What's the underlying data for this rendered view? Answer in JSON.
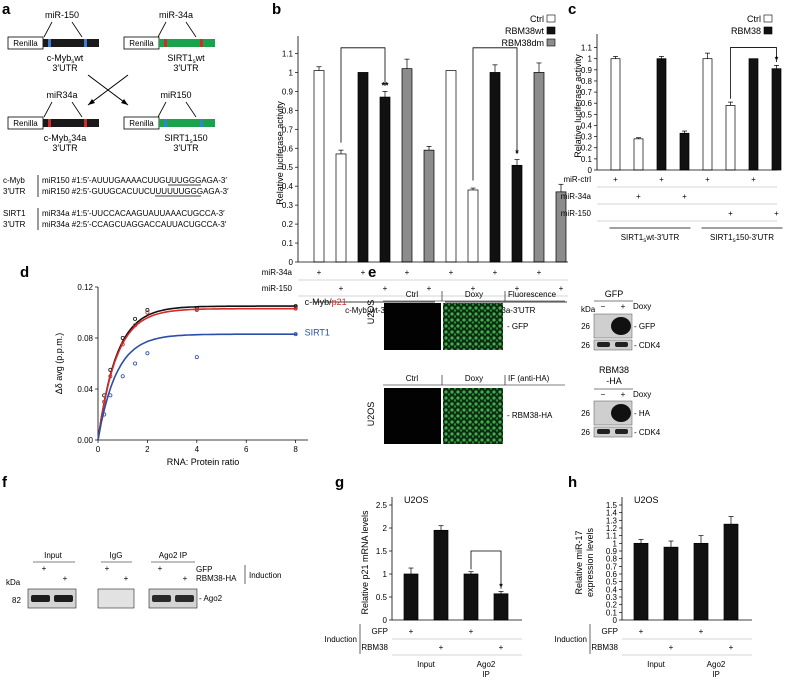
{
  "panel_labels": [
    "a",
    "b",
    "c",
    "d",
    "e",
    "f",
    "g",
    "h"
  ],
  "panel_a": {
    "constructs": [
      {
        "mirna": "miR-150",
        "renilla": "Renilla",
        "name1": "c-Myb",
        "sub": "s",
        "name2": "wt",
        "utr": "3′UTR",
        "color": "#1a1a1a",
        "site_color": "#3a7fd5"
      },
      {
        "mirna": "miR-34a",
        "renilla": "Renilla",
        "name1": "SIRT1",
        "sub": "s",
        "name2": "wt",
        "utr": "3′UTR",
        "color": "#1aa34a",
        "site_color": "#d42a2a"
      },
      {
        "mirna": "miR34a",
        "renilla": "Renilla",
        "name1": "c-Myb",
        "sub": "s",
        "name2": "34a",
        "utr": "3′UTR",
        "color": "#1a1a1a",
        "site_color": "#d42a2a"
      },
      {
        "mirna": "miR150",
        "renilla": "Renilla",
        "name1": "SIRT1",
        "sub": "s",
        "name2": "150",
        "utr": "3′UTR",
        "color": "#1aa34a",
        "site_color": "#3a7fd5"
      }
    ],
    "sequences": [
      {
        "gene": "c-Myb",
        "utr": "3′UTR",
        "lines": [
          "miR150 #1:5′-AUUUGAAAACUUGUUUGGGAGA-3′",
          "miR150 #2:5′-GUUGCACUUCUUUUUUGGGAGA-3′"
        ]
      },
      {
        "gene": "SIRT1",
        "utr": "3′UTR",
        "lines": [
          "miR34a #1:5′-UUCCACAAGUAUUAAACUGCCA-3′",
          "miR34a #2:5′-CCAGCUAGGACCAUUACUGCCA-3′"
        ]
      }
    ]
  },
  "panel_b": {
    "ylabel": "Relative luciferase activity",
    "yticks": [
      "0",
      "0.1",
      "0.2",
      "0.3",
      "0.4",
      "0.5",
      "0.6",
      "0.7",
      "0.8",
      "0.9",
      "1",
      "1.1"
    ],
    "ylim": [
      0,
      1.15
    ],
    "legend": [
      "Ctrl",
      "RBM38wt",
      "RBM38dm"
    ],
    "colors": {
      "Ctrl": "#ffffff",
      "RBM38wt": "#111111",
      "RBM38dm": "#8c8c8c"
    },
    "bars": [
      {
        "group": "Ctrl",
        "value": 1.01,
        "err": 0.02
      },
      {
        "group": "Ctrl",
        "value": 0.57,
        "err": 0.02
      },
      {
        "group": "RBM38wt",
        "value": 1.0,
        "err": 0.0
      },
      {
        "group": "RBM38wt",
        "value": 0.87,
        "err": 0.03
      },
      {
        "group": "RBM38dm",
        "value": 1.02,
        "err": 0.05
      },
      {
        "group": "RBM38dm",
        "value": 0.59,
        "err": 0.02
      },
      {
        "group": "Ctrl",
        "value": 1.01,
        "err": 0.0
      },
      {
        "group": "Ctrl",
        "value": 0.38,
        "err": 0.01
      },
      {
        "group": "RBM38wt",
        "value": 1.0,
        "err": 0.04
      },
      {
        "group": "RBM38wt",
        "value": 0.51,
        "err": 0.03
      },
      {
        "group": "RBM38dm",
        "value": 1.0,
        "err": 0.05
      },
      {
        "group": "RBM38dm",
        "value": 0.37,
        "err": 0.04
      }
    ],
    "row_labels": [
      "miR-34a",
      "miR-150"
    ],
    "row_marks": [
      [
        "+",
        "",
        "+",
        "",
        "+",
        "",
        "+",
        "",
        "+",
        "",
        "+",
        ""
      ],
      [
        "",
        "+",
        "",
        "+",
        "",
        "+",
        "",
        "+",
        "",
        "+",
        "",
        "+"
      ]
    ],
    "groups": [
      "c-Myb",
      "s",
      "wt-3′UTR",
      "c-Myb",
      "s",
      "3a-3′UTR"
    ],
    "sig": [
      "**",
      "*"
    ]
  },
  "panel_c": {
    "ylabel": "Relative luciferase activity",
    "yticks": [
      "0",
      "0.1",
      "0.2",
      "0.3",
      "0.4",
      "0.5",
      "0.6",
      "0.7",
      "0.8",
      "0.9",
      "1",
      "1.1"
    ],
    "ylim": [
      0,
      1.15
    ],
    "legend": [
      "Ctrl",
      "RBM38"
    ],
    "bars": [
      {
        "group": "Ctrl",
        "value": 1.0,
        "err": 0.02
      },
      {
        "group": "Ctrl",
        "value": 0.28,
        "err": 0.01
      },
      {
        "group": "RBM38",
        "value": 1.0,
        "err": 0.02
      },
      {
        "group": "RBM38",
        "value": 0.33,
        "err": 0.02
      },
      {
        "group": "Ctrl",
        "value": 1.0,
        "err": 0.05
      },
      {
        "group": "Ctrl",
        "value": 0.58,
        "err": 0.03
      },
      {
        "group": "RBM38",
        "value": 1.0,
        "err": 0.0
      },
      {
        "group": "RBM38",
        "value": 0.91,
        "err": 0.03
      }
    ],
    "row_labels": [
      "miR-ctrl",
      "miR-34a",
      "miR-150"
    ],
    "row_marks": [
      [
        "+",
        "",
        "+",
        "",
        "+",
        "",
        "+",
        ""
      ],
      [
        "",
        "+",
        "",
        "+",
        "",
        "",
        "",
        ""
      ],
      [
        "",
        "",
        "",
        "",
        "",
        "+",
        "",
        "+"
      ]
    ],
    "groups": [
      "SIRT1",
      "s",
      "wt-3′UTR",
      "SIRT1",
      "s",
      "150-3′UTR"
    ],
    "sig": [
      "*"
    ]
  },
  "panel_d": {
    "ylabel": "Δδ avg (p.p.m.)",
    "xlabel": "RNA: Protein ratio",
    "yticks": [
      "0.00",
      "0.04",
      "0.08",
      "0.12"
    ],
    "xticks": [
      "0",
      "2",
      "4",
      "6",
      "8"
    ],
    "xlim": [
      0,
      8.5
    ],
    "ylim": [
      0,
      0.12
    ],
    "series": [
      {
        "name": "c-Myb",
        "color": "#111111",
        "points": [
          [
            0.25,
            0.035
          ],
          [
            0.5,
            0.055
          ],
          [
            1,
            0.08
          ],
          [
            1.5,
            0.095
          ],
          [
            2,
            0.102
          ],
          [
            4,
            0.103
          ],
          [
            8,
            0.105
          ]
        ]
      },
      {
        "name": "p21",
        "color": "#d42a2a",
        "points": [
          [
            0.25,
            0.03
          ],
          [
            0.5,
            0.05
          ],
          [
            1,
            0.075
          ],
          [
            1.5,
            0.09
          ],
          [
            2,
            0.1
          ],
          [
            4,
            0.102
          ],
          [
            8,
            0.103
          ]
        ]
      },
      {
        "name": "SIRT1",
        "color": "#2a4fa8",
        "points": [
          [
            0.25,
            0.02
          ],
          [
            0.5,
            0.035
          ],
          [
            1,
            0.05
          ],
          [
            1.5,
            0.06
          ],
          [
            2,
            0.068
          ],
          [
            4,
            0.065
          ],
          [
            8,
            0.083
          ]
        ]
      }
    ],
    "label_sep": "/"
  },
  "panel_e": {
    "cell": "U2OS",
    "top": {
      "cols": [
        "Ctrl",
        "Doxy"
      ],
      "mode": "Fluorescence",
      "target": "- GFP",
      "blot_title": "GFP",
      "kda": "kDa",
      "minus": "−",
      "plus": "+",
      "doxy": "Doxy",
      "bands": [
        {
          "mw": "26",
          "label": "- GFP"
        },
        {
          "mw": "26",
          "label": "- CDK4"
        }
      ]
    },
    "bottom": {
      "cols": [
        "Ctrl",
        "Doxy"
      ],
      "mode": "IF (anti-HA)",
      "target": "- RBM38-HA",
      "blot_title_1": "RBM38",
      "blot_title_2": "-HA",
      "minus": "−",
      "plus": "+",
      "doxy": "Doxy",
      "bands": [
        {
          "mw": "26",
          "label": "- HA"
        },
        {
          "mw": "26",
          "label": "- CDK4"
        }
      ]
    }
  },
  "panel_f": {
    "lanes": [
      "Input",
      "IgG",
      "Ago2 IP"
    ],
    "rows": [
      "GFP",
      "RBM38-HA"
    ],
    "marks": [
      [
        "+",
        "",
        "+",
        "",
        "+",
        ""
      ],
      [
        "",
        "+",
        "",
        "+",
        "",
        "+"
      ]
    ],
    "induction": "Induction",
    "kda": "kDa",
    "mw": "82",
    "band": "- Ago2"
  },
  "panel_g": {
    "cell": "U2OS",
    "ylabel": "Relative p21 mRNA levels",
    "yticks": [
      "0",
      "0.5",
      "1",
      "1.5",
      "2",
      "2.5"
    ],
    "ylim": [
      0,
      2.5
    ],
    "bars": [
      {
        "value": 1.0,
        "err": 0.13
      },
      {
        "value": 1.95,
        "err": 0.1
      },
      {
        "value": 1.0,
        "err": 0.05
      },
      {
        "value": 0.57,
        "err": 0.05
      }
    ],
    "rows": [
      "GFP",
      "RBM38"
    ],
    "marks": [
      [
        "+",
        "",
        "+",
        ""
      ],
      [
        "",
        "+",
        "",
        "+"
      ]
    ],
    "induction": "Induction",
    "groups": [
      "Input",
      "Ago2",
      "IP"
    ],
    "sig": "*"
  },
  "panel_h": {
    "cell": "U2OS",
    "ylabel_1": "Relative miR-17",
    "ylabel_2": "expression levels",
    "yticks": [
      "0",
      "0.1",
      "0.2",
      "0.3",
      "0.4",
      "0.5",
      "0.6",
      "0.7",
      "0.8",
      "0.9",
      "1",
      "1.1",
      "1.2",
      "1.3",
      "1.4",
      "1.5"
    ],
    "ylim": [
      0,
      1.5
    ],
    "bars": [
      {
        "value": 1.0,
        "err": 0.05
      },
      {
        "value": 0.95,
        "err": 0.08
      },
      {
        "value": 1.0,
        "err": 0.1
      },
      {
        "value": 1.25,
        "err": 0.1
      }
    ],
    "rows": [
      "GFP",
      "RBM38"
    ],
    "marks": [
      [
        "+",
        "",
        "+",
        ""
      ],
      [
        "",
        "+",
        "",
        "+"
      ]
    ],
    "induction": "Induction",
    "groups": [
      "Input",
      "Ago2",
      "IP"
    ]
  }
}
